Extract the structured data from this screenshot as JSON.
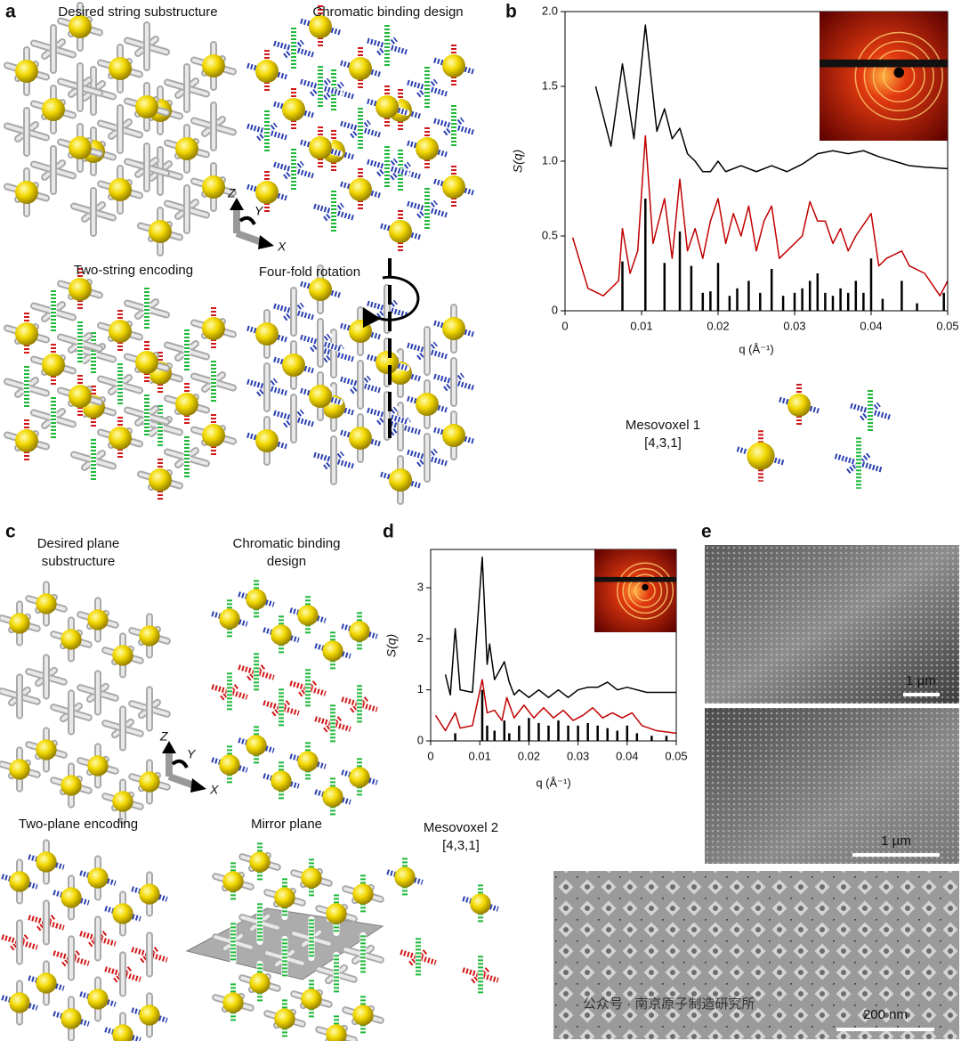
{
  "panels": {
    "a": {
      "label": "a",
      "titles": [
        [
          "Desired string substructure"
        ],
        [
          "Chromatic binding design"
        ],
        [
          "Two-string encoding"
        ],
        [
          "Four-fold rotation"
        ]
      ],
      "axes": [
        "Z",
        "Y",
        "X"
      ]
    },
    "b": {
      "label": "b",
      "mesovoxel": [
        "Mesovoxel 1",
        "[4,3,1]"
      ]
    },
    "c": {
      "label": "c",
      "titles": [
        [
          "Desired plane",
          "substructure"
        ],
        [
          "Chromatic binding",
          "design"
        ],
        [
          "Two-plane encoding"
        ],
        [
          "Mirror plane"
        ]
      ],
      "axes": [
        "Z",
        "Y",
        "X"
      ],
      "mesovoxel": [
        "Mesovoxel 2",
        "[4,3,1]"
      ]
    },
    "d": {
      "label": "d"
    },
    "e": {
      "label": "e",
      "scale_bars": [
        "1 µm",
        "1 µm",
        "200 nm"
      ]
    }
  },
  "chart_data": [
    {
      "type": "line",
      "xlabel": "q (Å⁻¹)",
      "ylabel": "S(q)",
      "xlim": [
        0,
        0.05
      ],
      "ylim": [
        0,
        2
      ],
      "xticks": [
        0,
        0.01,
        0.02,
        0.03,
        0.04,
        0.05
      ],
      "yticks": [
        0,
        0.5,
        {
          "value": 1,
          "label": "1.0"
        },
        1.5,
        {
          "value": 2,
          "label": "2.0"
        }
      ],
      "series": [
        {
          "color": "#000000",
          "x": [
            0.004,
            0.006,
            0.0075,
            0.009,
            0.0105,
            0.012,
            0.013,
            0.014,
            0.015,
            0.016,
            0.017,
            0.018,
            0.019,
            0.02,
            0.021,
            0.023,
            0.025,
            0.027,
            0.029,
            0.031,
            0.033,
            0.035,
            0.037,
            0.039,
            0.041,
            0.043,
            0.045,
            0.047,
            0.05
          ],
          "values": [
            1.5,
            1.1,
            1.65,
            1.15,
            1.91,
            1.2,
            1.35,
            1.15,
            1.22,
            1.05,
            1.0,
            0.93,
            0.93,
            1.0,
            0.93,
            0.97,
            0.93,
            0.97,
            0.93,
            0.98,
            1.05,
            1.07,
            1.05,
            1.07,
            1.03,
            1.0,
            0.97,
            0.96,
            0.95
          ]
        },
        {
          "color": "#c00000",
          "x": [
            0.001,
            0.003,
            0.005,
            0.007,
            0.0075,
            0.0085,
            0.0095,
            0.0105,
            0.0115,
            0.013,
            0.014,
            0.015,
            0.016,
            0.017,
            0.018,
            0.019,
            0.02,
            0.021,
            0.022,
            0.023,
            0.024,
            0.025,
            0.026,
            0.027,
            0.028,
            0.029,
            0.031,
            0.032,
            0.033,
            0.034,
            0.035,
            0.036,
            0.037,
            0.038,
            0.04,
            0.041,
            0.042,
            0.044,
            0.045,
            0.047,
            0.049,
            0.05
          ],
          "values": [
            0.49,
            0.15,
            0.1,
            0.2,
            0.55,
            0.25,
            0.4,
            1.17,
            0.45,
            0.75,
            0.35,
            0.88,
            0.4,
            0.55,
            0.35,
            0.6,
            0.75,
            0.45,
            0.65,
            0.5,
            0.7,
            0.4,
            0.6,
            0.7,
            0.35,
            0.4,
            0.5,
            0.73,
            0.6,
            0.6,
            0.45,
            0.55,
            0.4,
            0.5,
            0.65,
            0.3,
            0.35,
            0.4,
            0.3,
            0.25,
            0.1,
            0.2
          ]
        },
        {
          "color": "#000000",
          "kind": "stick",
          "x": [
            0.0075,
            0.0105,
            0.013,
            0.015,
            0.0165,
            0.018,
            0.019,
            0.02,
            0.0215,
            0.0225,
            0.024,
            0.0255,
            0.027,
            0.0285,
            0.03,
            0.031,
            0.032,
            0.033,
            0.034,
            0.035,
            0.036,
            0.037,
            0.038,
            0.039,
            0.04,
            0.0415,
            0.044,
            0.046,
            0.0495
          ],
          "values": [
            0.33,
            0.75,
            0.32,
            0.53,
            0.3,
            0.12,
            0.13,
            0.32,
            0.1,
            0.15,
            0.2,
            0.12,
            0.28,
            0.1,
            0.12,
            0.15,
            0.2,
            0.25,
            0.12,
            0.1,
            0.15,
            0.12,
            0.2,
            0.12,
            0.35,
            0.08,
            0.2,
            0.05,
            0.12
          ]
        }
      ]
    },
    {
      "type": "line",
      "xlabel": "q (Å⁻¹)",
      "ylabel": "S(q)",
      "xlim": [
        0,
        0.05
      ],
      "ylim": [
        0,
        3.75
      ],
      "xticks": [
        0,
        0.01,
        0.02,
        0.03,
        0.04,
        0.05
      ],
      "yticks": [
        0,
        1,
        2,
        3
      ],
      "series": [
        {
          "color": "#000000",
          "x": [
            0.003,
            0.004,
            0.005,
            0.006,
            0.0085,
            0.0105,
            0.0115,
            0.012,
            0.013,
            0.015,
            0.016,
            0.017,
            0.018,
            0.02,
            0.022,
            0.024,
            0.026,
            0.028,
            0.03,
            0.032,
            0.034,
            0.036,
            0.038,
            0.04,
            0.042,
            0.044,
            0.05
          ],
          "values": [
            1.3,
            0.9,
            2.2,
            1.0,
            0.95,
            3.6,
            1.5,
            1.9,
            1.2,
            1.55,
            1.15,
            0.9,
            1.0,
            0.85,
            1.0,
            0.85,
            1.0,
            0.85,
            1.0,
            1.05,
            1.05,
            1.15,
            1.0,
            1.05,
            1.0,
            0.95,
            0.95
          ]
        },
        {
          "color": "#c00000",
          "x": [
            0.001,
            0.003,
            0.005,
            0.006,
            0.0085,
            0.0105,
            0.0115,
            0.013,
            0.0145,
            0.0155,
            0.017,
            0.019,
            0.021,
            0.023,
            0.025,
            0.027,
            0.029,
            0.031,
            0.033,
            0.035,
            0.037,
            0.039,
            0.041,
            0.043,
            0.046,
            0.05
          ],
          "values": [
            0.5,
            0.2,
            0.55,
            0.25,
            0.3,
            1.2,
            0.55,
            0.6,
            0.4,
            0.85,
            0.45,
            0.7,
            0.45,
            0.65,
            0.45,
            0.6,
            0.4,
            0.5,
            0.65,
            0.45,
            0.55,
            0.45,
            0.55,
            0.3,
            0.2,
            0.15
          ]
        },
        {
          "color": "#000000",
          "kind": "stick",
          "x": [
            0.005,
            0.0105,
            0.0115,
            0.013,
            0.015,
            0.016,
            0.018,
            0.02,
            0.022,
            0.024,
            0.026,
            0.028,
            0.03,
            0.032,
            0.034,
            0.036,
            0.038,
            0.04,
            0.042,
            0.045,
            0.048
          ],
          "values": [
            0.15,
            1.0,
            0.3,
            0.2,
            0.4,
            0.15,
            0.3,
            0.45,
            0.35,
            0.3,
            0.4,
            0.3,
            0.3,
            0.35,
            0.3,
            0.25,
            0.2,
            0.3,
            0.15,
            0.1,
            0.1
          ]
        }
      ]
    }
  ],
  "watermark": "公众号 · 南京原子制造研究所"
}
